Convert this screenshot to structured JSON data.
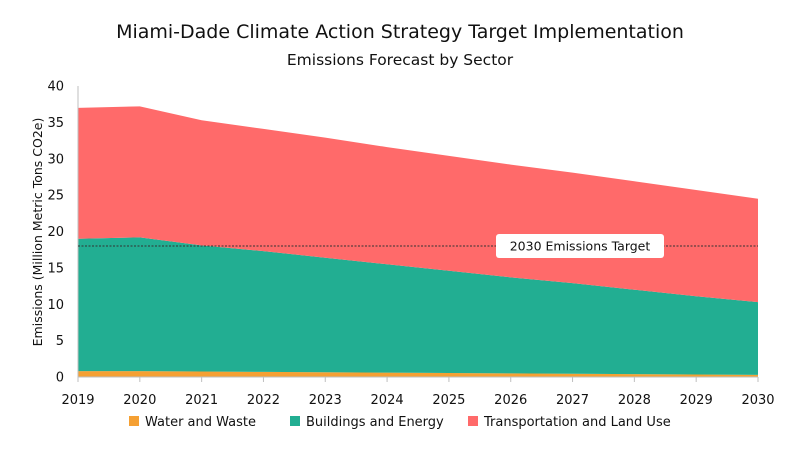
{
  "chart_data": {
    "type": "area",
    "stacked": true,
    "title": "Miami-Dade Climate Action Strategy Target Implementation",
    "subtitle": "Emissions Forecast by Sector",
    "xlabel": "",
    "ylabel": "Emissions (Million Metric Tons CO2e)",
    "x": [
      2019,
      2020,
      2021,
      2022,
      2023,
      2024,
      2025,
      2026,
      2027,
      2028,
      2029,
      2030
    ],
    "ylim": [
      0,
      40
    ],
    "yticks": [
      0,
      5,
      10,
      15,
      20,
      25,
      30,
      35,
      40
    ],
    "grid": false,
    "legend_position": "bottom",
    "series": [
      {
        "name": "Water and Waste",
        "color": "#F5A033",
        "values": [
          0.8,
          0.8,
          0.75,
          0.7,
          0.65,
          0.6,
          0.55,
          0.5,
          0.45,
          0.4,
          0.35,
          0.3
        ]
      },
      {
        "name": "Buildings and Energy",
        "color": "#22AE92",
        "values": [
          18.2,
          18.4,
          17.35,
          16.6,
          15.75,
          14.9,
          14.05,
          13.2,
          12.45,
          11.6,
          10.75,
          10.0
        ]
      },
      {
        "name": "Transportation and Land Use",
        "color": "#FF6A6A",
        "values": [
          18.0,
          18.0,
          17.2,
          16.8,
          16.5,
          16.1,
          15.8,
          15.5,
          15.2,
          14.9,
          14.6,
          14.2
        ]
      }
    ],
    "reference_line": {
      "y": 18,
      "label": "2030 Emissions Target",
      "style": "dashed"
    }
  }
}
